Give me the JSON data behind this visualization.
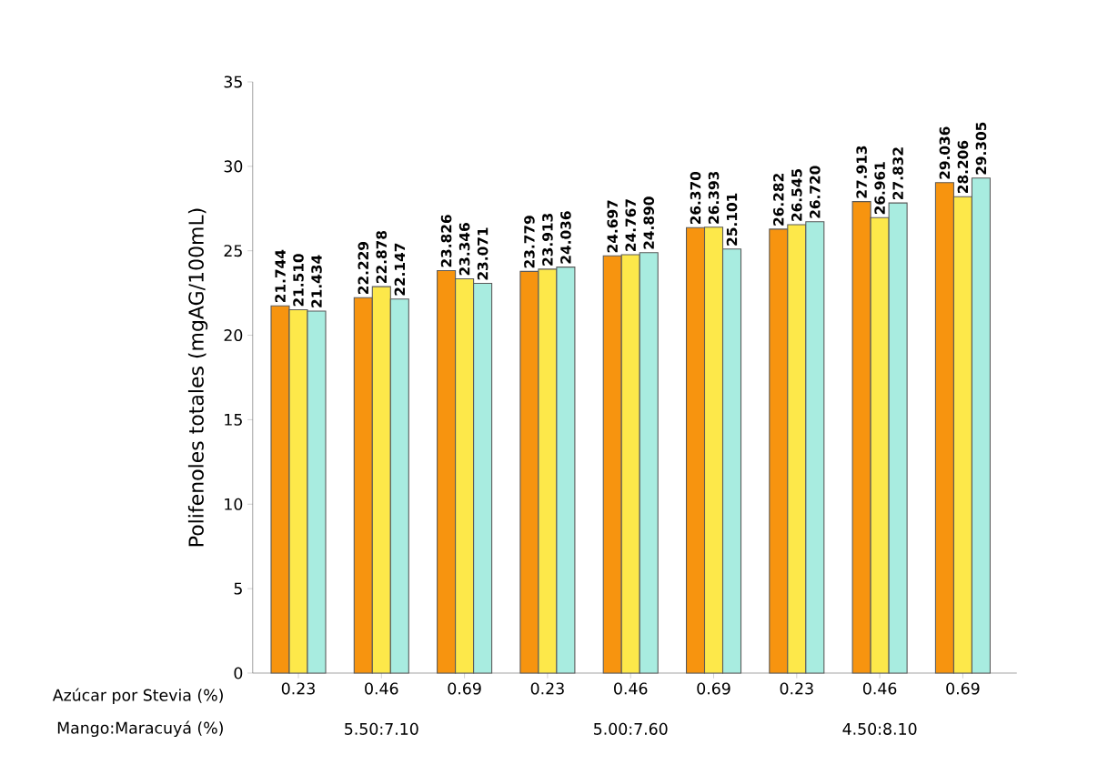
{
  "chart_data": {
    "type": "bar",
    "categories": [
      "0.23",
      "0.46",
      "0.69",
      "0.23",
      "0.46",
      "0.69",
      "0.23",
      "0.46",
      "0.69"
    ],
    "series": [
      {
        "color": "#f7940f",
        "values": [
          21.744,
          22.229,
          23.826,
          23.779,
          24.697,
          26.37,
          26.282,
          27.913,
          29.036
        ],
        "value_labels": [
          "21.744",
          "22.229",
          "23.826",
          "23.779",
          "24.697",
          "26.370",
          "26.282",
          "27.913",
          "29.036"
        ]
      },
      {
        "color": "#fde84a",
        "values": [
          21.51,
          22.878,
          23.346,
          23.913,
          24.767,
          26.393,
          26.545,
          26.961,
          28.206
        ],
        "value_labels": [
          "21.510",
          "22.878",
          "23.346",
          "23.913",
          "24.767",
          "26.393",
          "26.545",
          "26.961",
          "28.206"
        ]
      },
      {
        "color": "#a8ece0",
        "values": [
          21.434,
          22.147,
          23.071,
          24.036,
          24.89,
          25.101,
          26.72,
          27.832,
          29.305
        ],
        "value_labels": [
          "21.434",
          "22.147",
          "23.071",
          "24.036",
          "24.890",
          "25.101",
          "26.720",
          "27.832",
          "29.305"
        ]
      }
    ],
    "xlabel": "Azúcar por Stevia (%)",
    "ylabel": "Polifenoles totales (mgAG/100mL)",
    "annotations": [
      "Mango:Maracuyá (%)",
      "5.50:7.10",
      "5.00:7.60",
      "4.50:8.10"
    ],
    "ylim": [
      0,
      35
    ],
    "yticks": [
      0,
      5,
      10,
      15,
      20,
      25,
      30,
      35
    ]
  }
}
